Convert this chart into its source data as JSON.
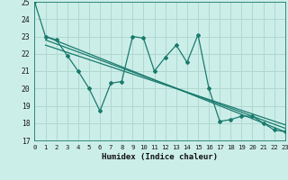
{
  "xlabel": "Humidex (Indice chaleur)",
  "background_color": "#cceee8",
  "grid_color": "#b0d8d0",
  "line_color": "#1a7a6e",
  "xmin": 0,
  "xmax": 23,
  "ymin": 17,
  "ymax": 25,
  "yticks": [
    17,
    18,
    19,
    20,
    21,
    22,
    23,
    24,
    25
  ],
  "xticks": [
    0,
    1,
    2,
    3,
    4,
    5,
    6,
    7,
    8,
    9,
    10,
    11,
    12,
    13,
    14,
    15,
    16,
    17,
    18,
    19,
    20,
    21,
    22,
    23
  ],
  "series1_x": [
    0,
    1,
    2,
    3,
    4,
    5,
    6,
    7,
    8,
    9,
    10,
    11,
    12,
    13,
    14,
    15,
    16,
    17,
    18,
    19,
    20,
    21,
    22,
    23
  ],
  "series1_y": [
    25,
    23,
    22.8,
    21.9,
    21.0,
    20.0,
    18.7,
    20.3,
    20.4,
    23.0,
    22.9,
    21.0,
    21.8,
    22.5,
    21.5,
    23.1,
    20.0,
    18.1,
    18.2,
    18.4,
    18.4,
    18.0,
    17.6,
    17.5
  ],
  "trend1_x": [
    1,
    23
  ],
  "trend1_y": [
    23.0,
    17.5
  ],
  "trend2_x": [
    1,
    23
  ],
  "trend2_y": [
    22.8,
    17.7
  ],
  "trend3_x": [
    1,
    23
  ],
  "trend3_y": [
    22.5,
    17.9
  ]
}
